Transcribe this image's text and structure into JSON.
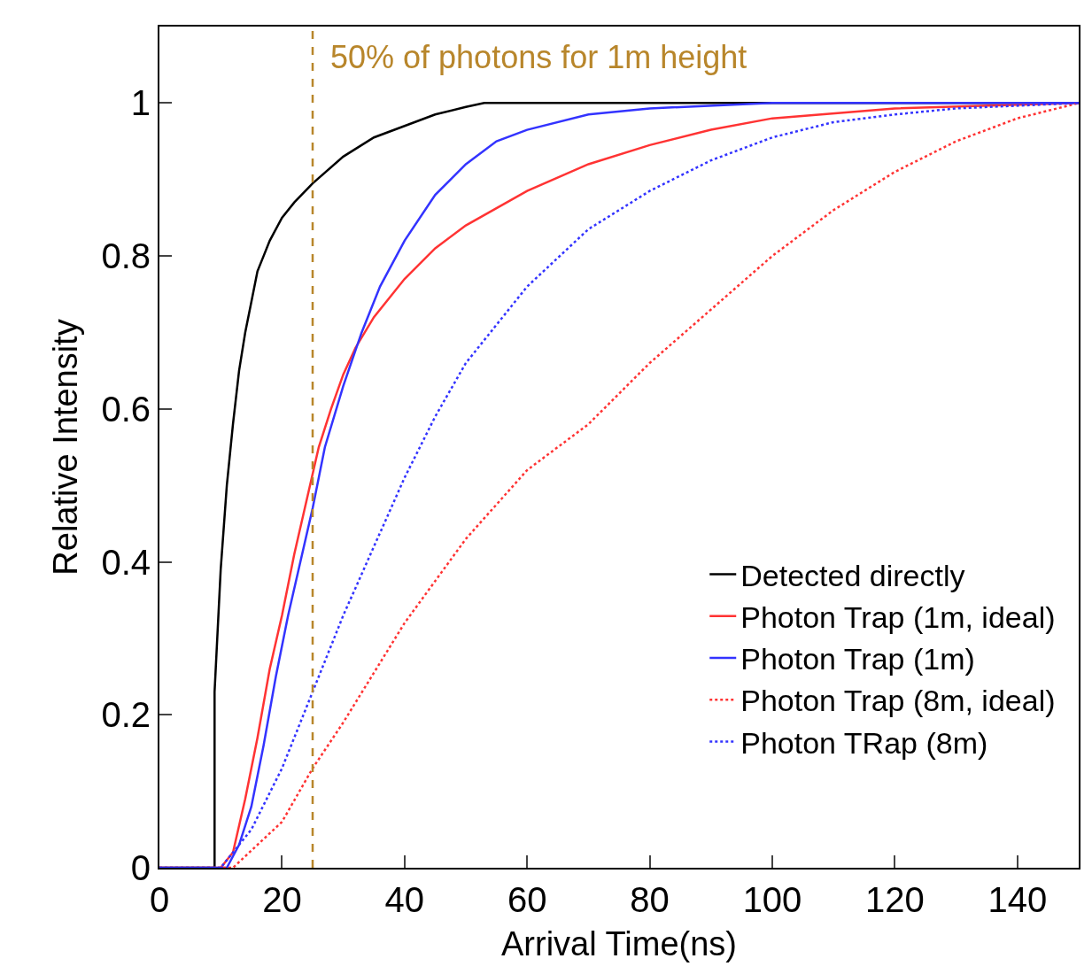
{
  "chart_data": {
    "type": "line",
    "xlabel": "Arrival Time(ns)",
    "ylabel": "Relative Intensity",
    "xlim": [
      0,
      150
    ],
    "xticks": [
      0,
      20,
      40,
      60,
      80,
      100,
      120,
      140
    ],
    "ylim": [
      0,
      1.1
    ],
    "yticks": [
      0,
      0.2,
      0.4,
      0.6,
      0.8,
      1
    ],
    "legend": "bottom right",
    "marker": "none",
    "series": [
      {
        "name": "Detected directly",
        "color": "#000000",
        "line_style": "solid",
        "x": [
          0,
          9,
          9,
          10,
          11,
          12,
          13,
          14,
          15,
          16,
          17,
          18,
          20,
          22,
          25,
          30,
          35,
          40,
          45,
          50,
          53,
          150
        ],
        "values": [
          0,
          0,
          0.23,
          0.39,
          0.5,
          0.58,
          0.65,
          0.7,
          0.74,
          0.78,
          0.8,
          0.82,
          0.85,
          0.87,
          0.895,
          0.93,
          0.955,
          0.97,
          0.985,
          0.995,
          1,
          1
        ]
      },
      {
        "name": "Photon Trap (1m, ideal)",
        "color": "#ff3333",
        "line_style": "solid",
        "x": [
          0,
          10,
          12,
          14,
          16,
          18,
          20,
          22,
          24,
          26,
          28,
          30,
          32,
          35,
          40,
          45,
          50,
          60,
          70,
          80,
          90,
          100,
          120,
          150
        ],
        "values": [
          0,
          0,
          0.02,
          0.09,
          0.17,
          0.26,
          0.33,
          0.41,
          0.48,
          0.55,
          0.6,
          0.645,
          0.68,
          0.72,
          0.77,
          0.81,
          0.84,
          0.885,
          0.92,
          0.945,
          0.965,
          0.98,
          0.993,
          1
        ]
      },
      {
        "name": "Photon Trap (1m)",
        "color": "#3333ff",
        "line_style": "solid",
        "x": [
          0,
          11,
          13,
          15,
          17,
          19,
          21,
          23,
          25,
          27,
          30,
          33,
          36,
          40,
          45,
          50,
          55,
          60,
          70,
          80,
          100,
          150
        ],
        "values": [
          0,
          0,
          0.03,
          0.08,
          0.16,
          0.25,
          0.33,
          0.4,
          0.47,
          0.55,
          0.63,
          0.7,
          0.76,
          0.82,
          0.88,
          0.92,
          0.95,
          0.965,
          0.985,
          0.993,
          1,
          1
        ]
      },
      {
        "name": "Photon Trap (8m, ideal)",
        "color": "#ff3333",
        "line_style": "dotted",
        "x": [
          0,
          12,
          20,
          25,
          30,
          40,
          50,
          60,
          70,
          80,
          90,
          100,
          110,
          120,
          130,
          140,
          150
        ],
        "values": [
          0,
          0,
          0.06,
          0.13,
          0.19,
          0.32,
          0.43,
          0.52,
          0.58,
          0.66,
          0.73,
          0.8,
          0.86,
          0.91,
          0.95,
          0.98,
          1
        ]
      },
      {
        "name": "Photon TRap (8m)",
        "color": "#3333ff",
        "line_style": "dotted",
        "x": [
          0,
          10,
          15,
          20,
          25,
          30,
          35,
          40,
          45,
          50,
          55,
          60,
          70,
          80,
          90,
          100,
          110,
          120,
          130,
          150
        ],
        "values": [
          0,
          0,
          0.05,
          0.13,
          0.23,
          0.33,
          0.42,
          0.51,
          0.59,
          0.66,
          0.71,
          0.76,
          0.835,
          0.885,
          0.925,
          0.955,
          0.975,
          0.985,
          0.993,
          1
        ]
      }
    ],
    "ref_lines": [
      {
        "axis": "x",
        "value": 25,
        "label": "50% of photons for 1m height",
        "color": "#b8862b",
        "line_style": "dashed"
      }
    ]
  }
}
